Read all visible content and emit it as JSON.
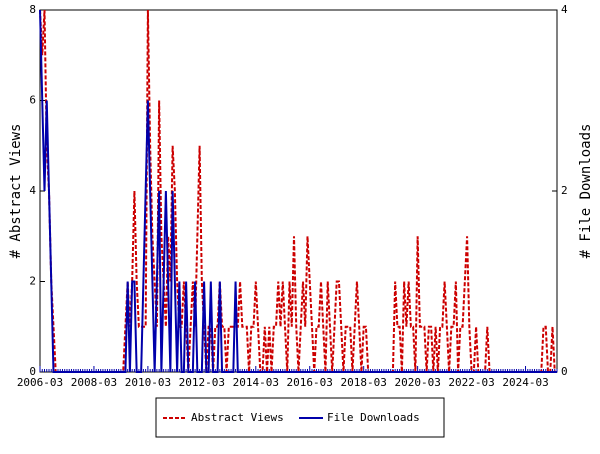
{
  "chart_data": {
    "type": "line",
    "ylabel": "# Abstract Views",
    "y2label": "# File Downloads",
    "categories": [
      "2006-03",
      null,
      null,
      null,
      null,
      null,
      null,
      null,
      null,
      null,
      null,
      null,
      null,
      null,
      null,
      null,
      null,
      null,
      null,
      null,
      null,
      null,
      null,
      null,
      "2008-03",
      null,
      null,
      null,
      null,
      null,
      null,
      null,
      null,
      null,
      null,
      null,
      null,
      null,
      null,
      null,
      null,
      null,
      null,
      null,
      null,
      null,
      null,
      null,
      "2010-03",
      null,
      null,
      null,
      null,
      null,
      null,
      null,
      null,
      null,
      null,
      null,
      null,
      null,
      null,
      null,
      null,
      null,
      null,
      null,
      null,
      null,
      null,
      null,
      "2012-03",
      null,
      null,
      null,
      null,
      null,
      null,
      null,
      null,
      null,
      null,
      null,
      null,
      null,
      null,
      null,
      null,
      null,
      null,
      null,
      null,
      null,
      null,
      null,
      "2014-03",
      null,
      null,
      null,
      null,
      null,
      null,
      null,
      null,
      null,
      null,
      null,
      null,
      null,
      null,
      null,
      null,
      null,
      null,
      null,
      null,
      null,
      null,
      null,
      "2016-03",
      null,
      null,
      null,
      null,
      null,
      null,
      null,
      null,
      null,
      null,
      null,
      null,
      null,
      null,
      null,
      null,
      null,
      null,
      null,
      null,
      null,
      null,
      null,
      "2018-03",
      null,
      null,
      null,
      null,
      null,
      null,
      null,
      null,
      null,
      null,
      null,
      null,
      null,
      null,
      null,
      null,
      null,
      null,
      null,
      null,
      null,
      null,
      null,
      "2020-03",
      null,
      null,
      null,
      null,
      null,
      null,
      null,
      null,
      null,
      null,
      null,
      null,
      null,
      null,
      null,
      null,
      null,
      null,
      null,
      null,
      null,
      null,
      null,
      "2022-03",
      null,
      null,
      null,
      null,
      null,
      null,
      null,
      null,
      null,
      null,
      null,
      null,
      null,
      null,
      null,
      null,
      null,
      null,
      null,
      null,
      null,
      null,
      null,
      "2024-03",
      null,
      null,
      null,
      null,
      null,
      null,
      null,
      null,
      null,
      null,
      null,
      null,
      null,
      null
    ],
    "series": [
      {
        "name": "Abstract Views",
        "color": "#cc0000",
        "dash": true,
        "values": [
          8,
          7,
          8,
          5,
          4,
          2,
          1,
          0,
          0,
          0,
          0,
          0,
          0,
          0,
          0,
          0,
          0,
          0,
          0,
          0,
          0,
          0,
          0,
          0,
          0,
          0,
          0,
          0,
          0,
          0,
          0,
          0,
          0,
          0,
          0,
          0,
          0,
          0,
          1,
          2,
          1,
          2,
          4,
          2,
          1,
          1,
          1,
          1,
          8,
          5,
          3,
          2,
          1,
          6,
          3,
          2,
          1,
          3,
          2,
          5,
          4,
          2,
          1,
          1,
          2,
          1,
          0,
          1,
          2,
          1,
          3,
          5,
          2,
          1,
          0,
          1,
          1,
          0,
          1,
          1,
          2,
          1,
          1,
          0,
          1,
          1,
          1,
          1,
          1,
          2,
          1,
          1,
          1,
          0,
          1,
          1,
          2,
          1,
          0,
          0,
          1,
          0,
          1,
          0,
          1,
          1,
          2,
          1,
          2,
          1,
          0,
          2,
          1,
          3,
          1,
          0,
          1,
          2,
          1,
          3,
          2,
          1,
          0,
          1,
          1,
          2,
          1,
          0,
          2,
          1,
          0,
          1,
          2,
          2,
          1,
          0,
          1,
          1,
          1,
          0,
          1,
          2,
          1,
          0,
          1,
          1,
          0,
          0,
          0,
          0,
          0,
          0,
          0,
          0,
          0,
          0,
          0,
          0,
          2,
          1,
          1,
          0,
          2,
          1,
          2,
          1,
          1,
          0,
          3,
          1,
          1,
          1,
          0,
          1,
          1,
          0,
          1,
          0,
          1,
          1,
          2,
          1,
          0,
          1,
          1,
          2,
          0,
          1,
          1,
          2,
          3,
          1,
          0,
          0,
          1,
          0,
          0,
          0,
          0,
          1,
          0,
          0,
          0,
          0,
          0,
          0,
          0,
          0,
          0,
          0,
          0,
          0,
          0,
          0,
          0,
          0,
          0,
          0,
          0,
          0,
          0,
          0,
          0,
          0,
          1,
          1,
          0,
          0,
          1,
          0,
          0
        ]
      },
      {
        "name": "File Downloads",
        "color": "#0000aa",
        "axis": "y2",
        "values": [
          4,
          3,
          2,
          3,
          2,
          1,
          0,
          0,
          0,
          0,
          0,
          0,
          0,
          0,
          0,
          0,
          0,
          0,
          0,
          0,
          0,
          0,
          0,
          0,
          0,
          0,
          0,
          0,
          0,
          0,
          0,
          0,
          0,
          0,
          0,
          0,
          0,
          0,
          0,
          1,
          0,
          1,
          1,
          0,
          0,
          0,
          1,
          2,
          3,
          2,
          1,
          0,
          1,
          2,
          0,
          1,
          2,
          1,
          0,
          2,
          1,
          0,
          1,
          0,
          0,
          1,
          0,
          0,
          0,
          1,
          0,
          0,
          0,
          1,
          0,
          0,
          1,
          0,
          0,
          0,
          1,
          0,
          0,
          0,
          0,
          0,
          0,
          1,
          0,
          0,
          0,
          0,
          0,
          0,
          0,
          0,
          0,
          0,
          0,
          0,
          0,
          0,
          0,
          0,
          0,
          0,
          0,
          0,
          0,
          0,
          0,
          0,
          0,
          0,
          0,
          0,
          0,
          0,
          0,
          0,
          0,
          0,
          0,
          0,
          0,
          0,
          0,
          0,
          0,
          0,
          0,
          0,
          0,
          0,
          0,
          0,
          0,
          0,
          0,
          0,
          0,
          0,
          0,
          0,
          0,
          0,
          0,
          0,
          0,
          0,
          0,
          0,
          0,
          0,
          0,
          0,
          0,
          0,
          0,
          0,
          0,
          0,
          0,
          0,
          0,
          0,
          0,
          0,
          0,
          0,
          0,
          0,
          0,
          0,
          0,
          0,
          0,
          0,
          0,
          0,
          0,
          0,
          0,
          0,
          0,
          0,
          0,
          0,
          0,
          0,
          0,
          0,
          0,
          0,
          0,
          0,
          0,
          0,
          0,
          0,
          0,
          0,
          0,
          0,
          0,
          0,
          0,
          0,
          0,
          0,
          0,
          0,
          0,
          0,
          0,
          0,
          0,
          0,
          0,
          0,
          0,
          0,
          0,
          0,
          0,
          0,
          0,
          0,
          0,
          0,
          0
        ]
      }
    ],
    "ylim": [
      0,
      8
    ],
    "yticks": [
      0,
      2,
      4,
      6,
      8
    ],
    "y2lim": [
      0,
      4
    ],
    "y2ticks": [
      0,
      2,
      4
    ]
  }
}
